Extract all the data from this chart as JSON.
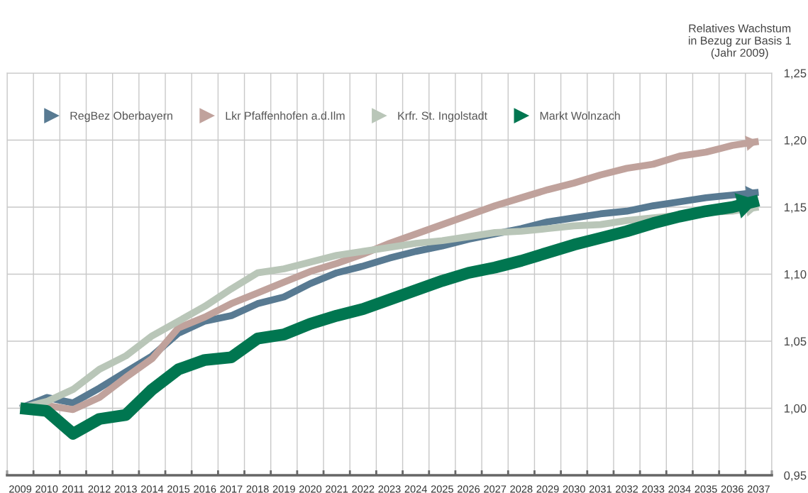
{
  "chart_data": {
    "type": "line",
    "ylabel": "Relatives Wachstum\nin Bezug zur Basis 1\n(Jahr 2009)",
    "categories": [
      "2009",
      "2010",
      "2011",
      "2012",
      "2013",
      "2014",
      "2015",
      "2016",
      "2017",
      "2018",
      "2019",
      "2020",
      "2021",
      "2022",
      "2023",
      "2024",
      "2025",
      "2026",
      "2027",
      "2028",
      "2029",
      "2030",
      "2031",
      "2032",
      "2033",
      "2034",
      "2035",
      "2036",
      "2037"
    ],
    "series": [
      {
        "name": "RegBez Oberbayern",
        "color": "#587a92",
        "values": [
          1.0,
          1.008,
          1.004,
          1.015,
          1.027,
          1.039,
          1.056,
          1.065,
          1.069,
          1.078,
          1.083,
          1.093,
          1.101,
          1.106,
          1.112,
          1.117,
          1.121,
          1.126,
          1.13,
          1.134,
          1.139,
          1.142,
          1.145,
          1.147,
          1.151,
          1.154,
          1.157,
          1.159,
          1.161
        ]
      },
      {
        "name": "Lkr Pfaffenhofen a.d.Ilm",
        "color": "#c0a29c",
        "values": [
          1.0,
          1.002,
          0.999,
          1.008,
          1.023,
          1.037,
          1.06,
          1.068,
          1.078,
          1.086,
          1.094,
          1.102,
          1.108,
          1.115,
          1.123,
          1.13,
          1.137,
          1.144,
          1.151,
          1.157,
          1.163,
          1.168,
          1.174,
          1.179,
          1.182,
          1.188,
          1.191,
          1.196,
          1.199
        ]
      },
      {
        "name": "Krfr. St. Ingolstadt",
        "color": "#b9c6b8",
        "values": [
          1.0,
          1.005,
          1.014,
          1.029,
          1.039,
          1.054,
          1.065,
          1.076,
          1.089,
          1.101,
          1.104,
          1.109,
          1.114,
          1.117,
          1.12,
          1.123,
          1.125,
          1.128,
          1.131,
          1.132,
          1.134,
          1.136,
          1.137,
          1.14,
          1.142,
          1.144,
          1.146,
          1.147,
          1.15
        ]
      },
      {
        "name": "Markt Wolnzach",
        "color": "#007650",
        "values": [
          1.0,
          0.998,
          0.981,
          0.992,
          0.995,
          1.014,
          1.029,
          1.036,
          1.038,
          1.052,
          1.055,
          1.063,
          1.069,
          1.074,
          1.081,
          1.088,
          1.095,
          1.101,
          1.105,
          1.11,
          1.116,
          1.122,
          1.127,
          1.132,
          1.138,
          1.143,
          1.147,
          1.15,
          1.155
        ]
      }
    ],
    "ylim": [
      0.95,
      1.25
    ],
    "yticks": [
      {
        "value": 0.95,
        "label": "0,95"
      },
      {
        "value": 1.0,
        "label": "1,00"
      },
      {
        "value": 1.05,
        "label": "1,05"
      },
      {
        "value": 1.1,
        "label": "1,10"
      },
      {
        "value": 1.15,
        "label": "1,15"
      },
      {
        "value": 1.2,
        "label": "1,20"
      },
      {
        "value": 1.25,
        "label": "1,25"
      }
    ],
    "grid": true,
    "legend": "top left",
    "line_style": "solid"
  }
}
